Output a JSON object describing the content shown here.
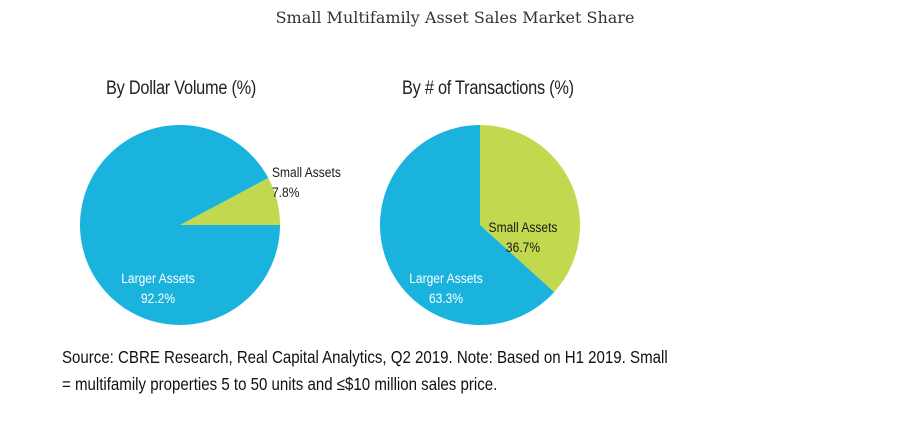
{
  "title": "Small Multifamily Asset Sales Market Share",
  "colors": {
    "larger": "#1ab3dd",
    "small": "#c2d84e",
    "text_dark": "#1a1a1a",
    "text_light": "#ffffff"
  },
  "chart_data": [
    {
      "type": "pie",
      "title": "By Dollar Volume (%)",
      "slices": [
        {
          "label": "Small Assets",
          "value": 7.8,
          "display": "7.8%"
        },
        {
          "label": "Larger Assets",
          "value": 92.2,
          "display": "92.2%"
        }
      ]
    },
    {
      "type": "pie",
      "title": "By # of Transactions (%)",
      "slices": [
        {
          "label": "Small Assets",
          "value": 36.7,
          "display": "36.7%"
        },
        {
          "label": "Larger Assets",
          "value": 63.3,
          "display": "63.3%"
        }
      ]
    }
  ],
  "source": {
    "line1": "Source: CBRE Research, Real Capital Analytics, Q2 2019. Note: Based on H1 2019. Small",
    "line2": "= multifamily properties 5 to 50 units and ≤$10 million sales price."
  }
}
